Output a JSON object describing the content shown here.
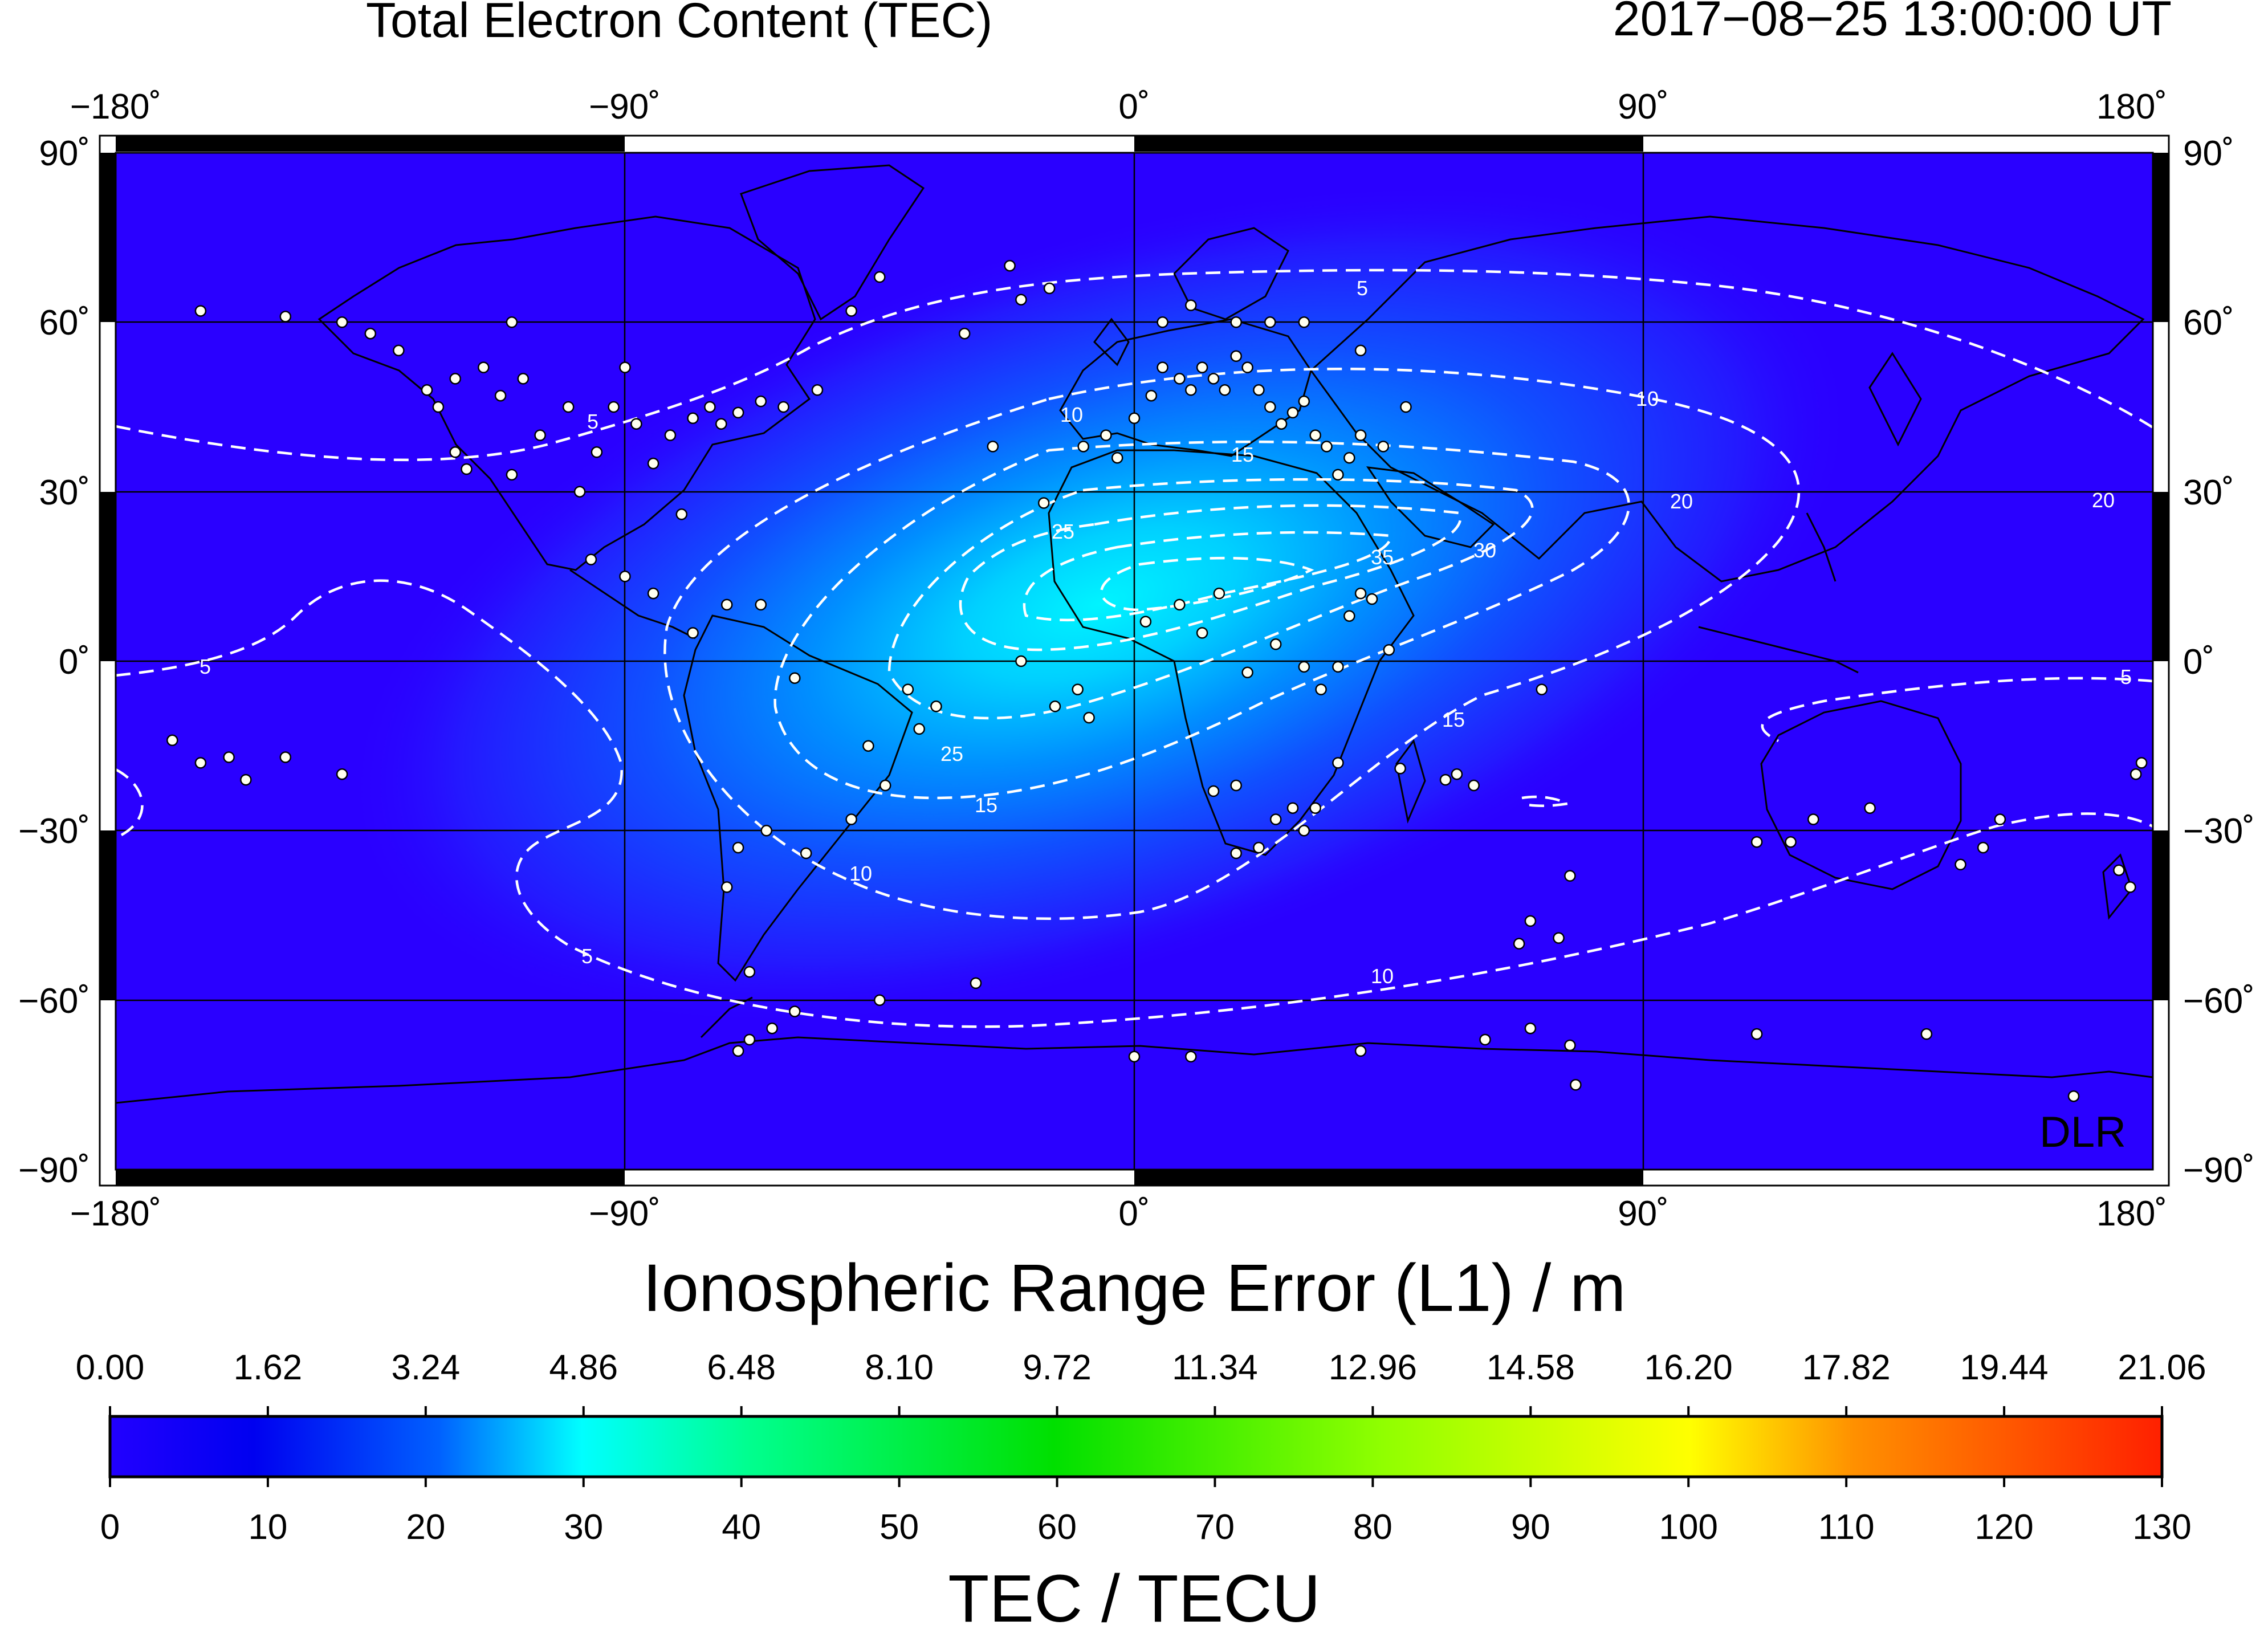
{
  "header": {
    "title": "Total Electron Content (TEC)",
    "timestamp": "2017−08−25  13:00:00 UT"
  },
  "map": {
    "lon_ticks": [
      "−180˚",
      "−90˚",
      "0˚",
      "90˚",
      "180˚"
    ],
    "lat_ticks_left": [
      "90˚",
      "60˚",
      "30˚",
      "0˚",
      "−30˚",
      "−60˚",
      "−90˚"
    ],
    "lat_ticks_right": [
      "90˚",
      "60˚",
      "30˚",
      "0˚",
      "−30˚",
      "−60˚",
      "−90˚"
    ],
    "watermark": "DLR",
    "contour_labels": [
      "5",
      "5",
      "5",
      "5",
      "5",
      "10",
      "10",
      "10",
      "10",
      "15",
      "15",
      "15",
      "20",
      "20",
      "25",
      "25",
      "30",
      "35"
    ],
    "colors": {
      "background": "#2a00ff",
      "peak": "#00e6ff",
      "contour": "#ffffff",
      "station": "#fffff0"
    }
  },
  "colorbar": {
    "top_title": "Ionospheric Range Error (L1) / m",
    "top_ticks": [
      "0.00",
      "1.62",
      "3.24",
      "4.86",
      "6.48",
      "8.10",
      "9.72",
      "11.34",
      "12.96",
      "14.58",
      "16.20",
      "17.82",
      "19.44",
      "21.06"
    ],
    "bottom_ticks": [
      "0",
      "10",
      "20",
      "30",
      "40",
      "50",
      "60",
      "70",
      "80",
      "90",
      "100",
      "110",
      "120",
      "130"
    ],
    "bottom_title": "TEC / TECU",
    "stops": [
      "#2200ff",
      "#0000f0",
      "#0060ff",
      "#00ffff",
      "#00ff80",
      "#00e000",
      "#80ff00",
      "#ffff00",
      "#ff8000",
      "#ff2000"
    ]
  }
}
